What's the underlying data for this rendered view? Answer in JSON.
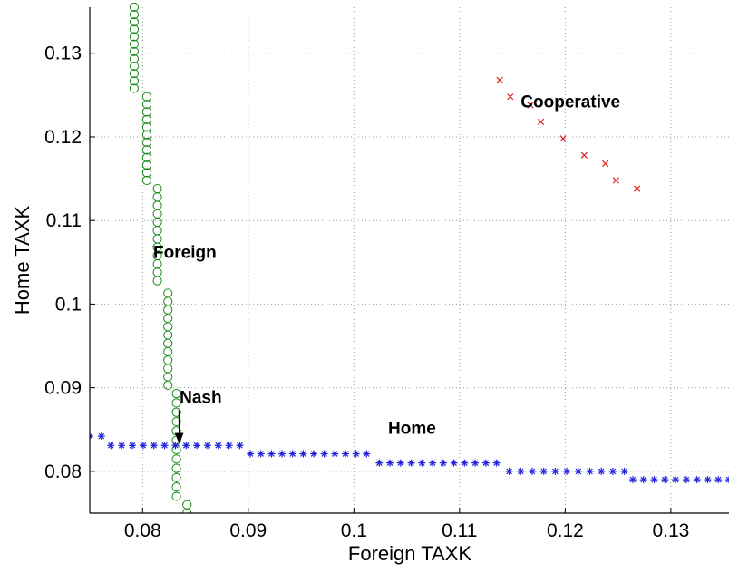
{
  "chart_data": {
    "type": "scatter",
    "xlabel": "Foreign TAXK",
    "ylabel": "Home TAXK",
    "xlim": [
      0.075,
      0.1355
    ],
    "ylim": [
      0.075,
      0.1355
    ],
    "xticks": [
      0.08,
      0.09,
      0.1,
      0.11,
      0.12,
      0.13
    ],
    "yticks": [
      0.08,
      0.09,
      0.1,
      0.11,
      0.12,
      0.13
    ],
    "xtick_labels": [
      "0.08",
      "0.09",
      "0.1",
      "0.11",
      "0.12",
      "0.13"
    ],
    "ytick_labels": [
      "0.08",
      "0.09",
      "0.1",
      "0.11",
      "0.12",
      "0.13"
    ],
    "grid": true,
    "series": [
      {
        "marker": "circle",
        "color": "#1a8a1a",
        "segments": [
          {
            "x": 0.0792,
            "y_from": 0.1258,
            "y_to": 0.1355,
            "n": 12
          },
          {
            "x": 0.0804,
            "y_from": 0.1148,
            "y_to": 0.1248,
            "n": 12
          },
          {
            "x": 0.0814,
            "y_from": 0.1028,
            "y_to": 0.1138,
            "n": 12
          },
          {
            "x": 0.0824,
            "y_from": 0.0903,
            "y_to": 0.1013,
            "n": 12
          },
          {
            "x": 0.0832,
            "y_from": 0.077,
            "y_to": 0.0893,
            "n": 12
          },
          {
            "x": 0.0842,
            "y_from": 0.075,
            "y_to": 0.076,
            "n": 2
          }
        ]
      },
      {
        "marker": "asterisk",
        "color": "#2222dd",
        "segments": [
          {
            "y": 0.0842,
            "x_from": 0.075,
            "x_to": 0.0761,
            "n": 2
          },
          {
            "y": 0.0831,
            "x_from": 0.077,
            "x_to": 0.0892,
            "n": 13
          },
          {
            "y": 0.0821,
            "x_from": 0.0902,
            "x_to": 0.1012,
            "n": 12
          },
          {
            "y": 0.081,
            "x_from": 0.1024,
            "x_to": 0.1135,
            "n": 12
          },
          {
            "y": 0.08,
            "x_from": 0.1147,
            "x_to": 0.1256,
            "n": 11
          },
          {
            "y": 0.079,
            "x_from": 0.1264,
            "x_to": 0.1355,
            "n": 10
          }
        ]
      },
      {
        "marker": "x",
        "color": "#dd2222",
        "points": [
          [
            0.1138,
            0.1268
          ],
          [
            0.1148,
            0.1248
          ],
          [
            0.1167,
            0.1238
          ],
          [
            0.1177,
            0.1218
          ],
          [
            0.1198,
            0.1198
          ],
          [
            0.1218,
            0.1178
          ],
          [
            0.1238,
            0.1168
          ],
          [
            0.1248,
            0.1148
          ],
          [
            0.1268,
            0.1138
          ]
        ]
      }
    ],
    "annotations": [
      {
        "text": "Cooperative",
        "x": 0.1205,
        "y": 0.1235
      },
      {
        "text": "Foreign",
        "x": 0.084,
        "y": 0.1055
      },
      {
        "text": "Home",
        "x": 0.1055,
        "y": 0.0845
      },
      {
        "text": "Nash",
        "x": 0.0855,
        "y": 0.0882,
        "arrow_to": [
          0.0833,
          0.0832
        ]
      }
    ]
  }
}
